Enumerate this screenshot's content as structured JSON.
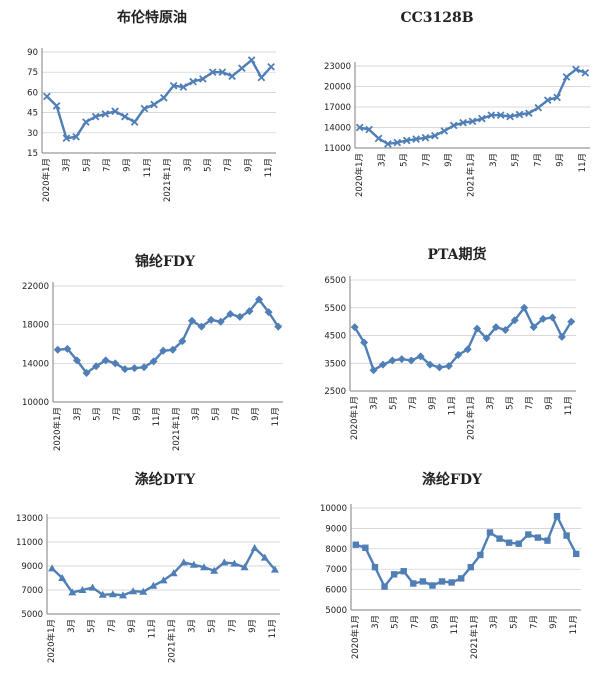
{
  "chart_data": [
    {
      "type": "line",
      "title": "布伦特原油",
      "marker": "x",
      "x_labels": [
        "2020年1月",
        "3月",
        "5月",
        "7月",
        "9月",
        "11月",
        "2021年1月",
        "3月",
        "5月",
        "7月",
        "9月",
        "11月"
      ],
      "yticks": [
        15,
        30,
        45,
        60,
        75,
        90
      ],
      "ylim": [
        15,
        90
      ],
      "grid": true,
      "color": "#4f7fb6",
      "values": [
        57,
        50,
        26,
        27,
        38,
        42,
        44,
        46,
        42,
        38,
        48,
        51,
        56,
        65,
        64,
        68,
        70,
        75,
        75,
        72,
        78,
        84,
        71,
        79
      ]
    },
    {
      "type": "line",
      "title": "CC3128B",
      "marker": "x",
      "x_labels": [
        "2020年1月",
        "3月",
        "5月",
        "7月",
        "9月",
        "2021年1月",
        "3月",
        "5月",
        "7月",
        "9月",
        "11月"
      ],
      "yticks": [
        11000,
        14000,
        17000,
        20000,
        23000
      ],
      "ylim": [
        11000,
        23000
      ],
      "grid": true,
      "color": "#4f7fb6",
      "values": [
        14000,
        13700,
        12400,
        11600,
        11800,
        12100,
        12300,
        12500,
        12800,
        13500,
        14300,
        14700,
        14900,
        15300,
        15800,
        15800,
        15600,
        15900,
        16100,
        16900,
        18000,
        18400,
        21400,
        22500,
        22000
      ]
    },
    {
      "type": "line",
      "title": "锦纶FDY",
      "marker": "diamond",
      "x_labels": [
        "2020年1月",
        "3月",
        "5月",
        "7月",
        "9月",
        "11月",
        "2021年1月",
        "3月",
        "5月",
        "7月",
        "9月",
        "11月"
      ],
      "yticks": [
        10000,
        14000,
        18000,
        22000
      ],
      "ylim": [
        10000,
        22000
      ],
      "grid": true,
      "color": "#4f7fb6",
      "values": [
        15400,
        15500,
        14300,
        13000,
        13700,
        14300,
        14000,
        13400,
        13500,
        13600,
        14200,
        15300,
        15400,
        16300,
        18400,
        17800,
        18500,
        18300,
        19100,
        18800,
        19400,
        20600,
        19300,
        17800
      ]
    },
    {
      "type": "line",
      "title": "PTA期货",
      "marker": "diamond",
      "x_labels": [
        "2020年1月",
        "3月",
        "5月",
        "7月",
        "9月",
        "11月",
        "2021年1月",
        "3月",
        "5月",
        "7月",
        "9月",
        "11月"
      ],
      "yticks": [
        2500,
        3500,
        4500,
        5500,
        6500
      ],
      "ylim": [
        2500,
        6500
      ],
      "grid": true,
      "color": "#4f7fb6",
      "values": [
        4800,
        4250,
        3250,
        3450,
        3600,
        3650,
        3600,
        3750,
        3450,
        3350,
        3400,
        3800,
        4000,
        4750,
        4400,
        4800,
        4700,
        5050,
        5500,
        4800,
        5100,
        5150,
        4450,
        5000
      ]
    },
    {
      "type": "line",
      "title": "涤纶DTY",
      "marker": "triangle",
      "x_labels": [
        "2020年1月",
        "3月",
        "5月",
        "7月",
        "9月",
        "11月",
        "2021年1月",
        "3月",
        "5月",
        "7月",
        "9月",
        "11月"
      ],
      "yticks": [
        5000,
        7000,
        9000,
        11000,
        13000
      ],
      "ylim": [
        5000,
        13000
      ],
      "grid": true,
      "color": "#4f7fb6",
      "values": [
        8800,
        8000,
        6800,
        7000,
        7200,
        6600,
        6650,
        6550,
        6900,
        6850,
        7350,
        7800,
        8400,
        9300,
        9100,
        8900,
        8600,
        9300,
        9200,
        8900,
        10500,
        9700,
        8700
      ]
    },
    {
      "type": "line",
      "title": "涤纶FDY",
      "marker": "square",
      "x_labels": [
        "2020年1月",
        "3月",
        "5月",
        "7月",
        "9月",
        "11月",
        "2021年1月",
        "3月",
        "5月",
        "7月",
        "9月",
        "11月"
      ],
      "yticks": [
        5000,
        6000,
        7000,
        8000,
        9000,
        10000
      ],
      "ylim": [
        5000,
        10000
      ],
      "grid": true,
      "color": "#4f7fb6",
      "values": [
        8200,
        8050,
        7100,
        6150,
        6750,
        6900,
        6300,
        6400,
        6200,
        6400,
        6350,
        6550,
        7100,
        7700,
        8800,
        8500,
        8300,
        8250,
        8700,
        8550,
        8400,
        9600,
        8650,
        7750
      ]
    }
  ]
}
